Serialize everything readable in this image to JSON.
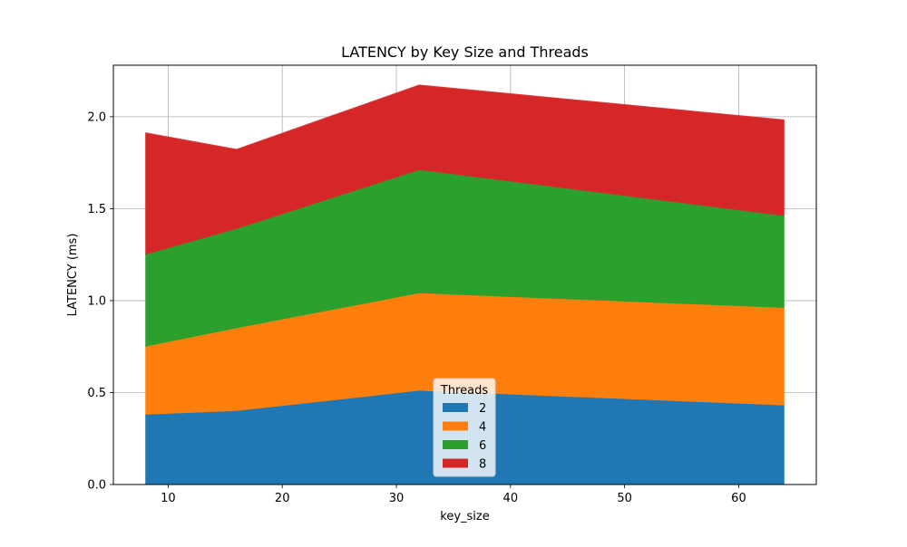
{
  "chart_data": {
    "type": "area",
    "stacked": true,
    "title": "LATENCY by Key Size and Threads",
    "xlabel": "key_size",
    "ylabel": "LATENCY (ms)",
    "x": [
      8,
      16,
      32,
      64
    ],
    "xlim": [
      5.2,
      66.8
    ],
    "ylim": [
      0,
      2.28
    ],
    "xticks": [
      10,
      20,
      30,
      40,
      50,
      60
    ],
    "xtick_labels": [
      "10",
      "20",
      "30",
      "40",
      "50",
      "60"
    ],
    "yticks": [
      0,
      0.5,
      1.0,
      1.5,
      2.0
    ],
    "ytick_labels": [
      "0.0",
      "0.5",
      "1.0",
      "1.5",
      "2.0"
    ],
    "grid": true,
    "legend": {
      "title": "Threads",
      "placement": "lower center"
    },
    "series": [
      {
        "name": "2",
        "color": "#1f77b4",
        "values": [
          0.38,
          0.4,
          0.51,
          0.43
        ]
      },
      {
        "name": "4",
        "color": "#ff7f0e",
        "values": [
          0.37,
          0.45,
          0.53,
          0.53
        ]
      },
      {
        "name": "6",
        "color": "#2ca02c",
        "values": [
          0.5,
          0.54,
          0.67,
          0.5
        ]
      },
      {
        "name": "8",
        "color": "#d62728",
        "values": [
          0.66,
          0.43,
          0.46,
          0.52
        ]
      }
    ]
  }
}
